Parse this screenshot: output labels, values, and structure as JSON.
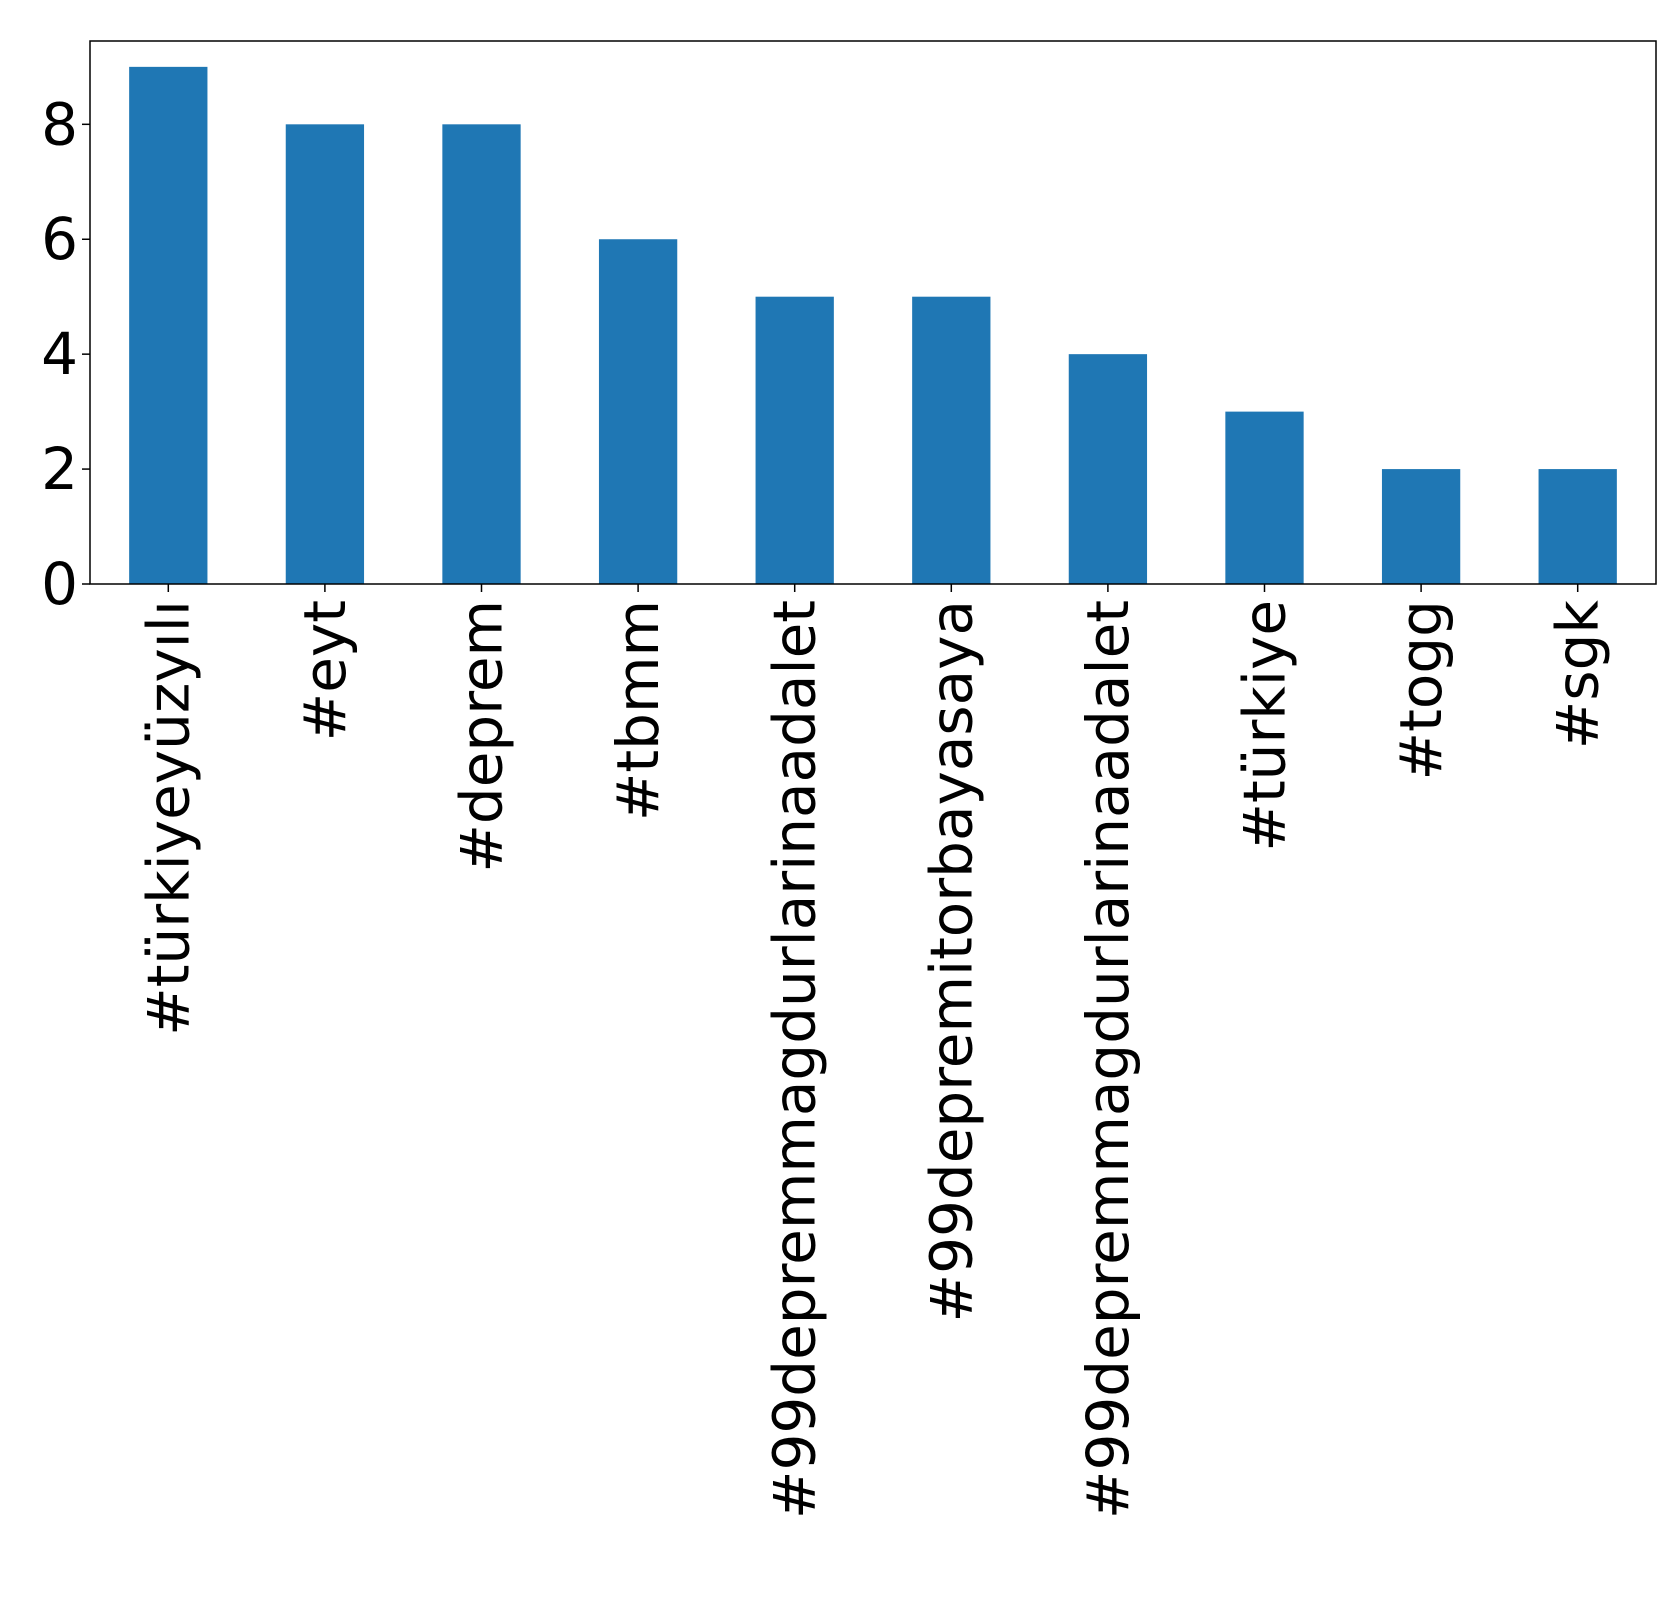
{
  "chart_data": {
    "type": "bar",
    "title": "",
    "xlabel": "",
    "ylabel": "",
    "categories": [
      "#türkiyeyüzyılı",
      "#eyt",
      "#deprem",
      "#tbmm",
      "#99depremmagdurlarinaadalet",
      "#99depremitorbayasaya",
      "#99depremmagdurlarinaadalet",
      "#türkiye",
      "#togg",
      "#sgk"
    ],
    "series": [
      {
        "values": [
          9,
          8,
          8,
          6,
          5,
          5,
          4,
          3,
          2,
          2
        ],
        "color": "#1f77b4"
      }
    ],
    "ylim": [
      0,
      9.45
    ],
    "yticks": [
      0,
      2,
      4,
      6,
      8
    ],
    "ytick_labels": [
      "0",
      "2",
      "4",
      "6",
      "8"
    ],
    "grid": false,
    "legend": "none",
    "x_label_rotation": "vertical"
  }
}
